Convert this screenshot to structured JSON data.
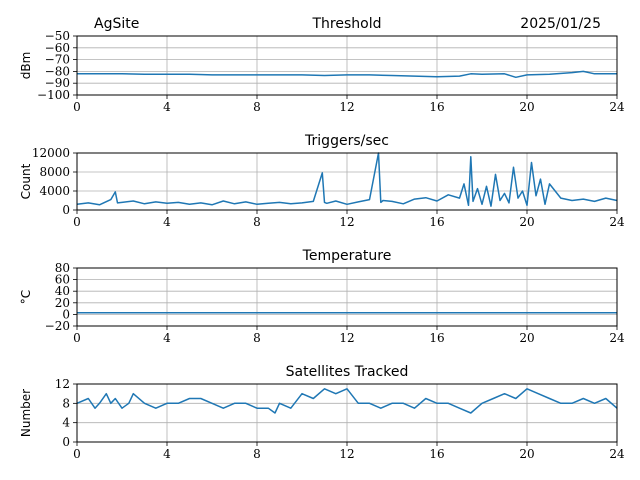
{
  "header": {
    "site": "AgSite",
    "date": "2025/01/25"
  },
  "colors": {
    "series": "#1f77b4",
    "grid": "#b0b0b0",
    "axis": "#000000"
  },
  "chart_data": [
    {
      "type": "line",
      "title": "Threshold",
      "xlabel": "",
      "ylabel": "dBm",
      "xlim": [
        0,
        24
      ],
      "ylim": [
        -100,
        -50
      ],
      "xticks": [
        0,
        4,
        8,
        12,
        16,
        20,
        24
      ],
      "yticks": [
        -100,
        -90,
        -80,
        -70,
        -60,
        -50
      ],
      "ytick_labels": [
        "−100",
        "−90",
        "−80",
        "−70",
        "−60",
        "−50"
      ],
      "grid": true,
      "series": [
        {
          "x": [
            0,
            1,
            2,
            3,
            4,
            5,
            6,
            7,
            8,
            9,
            10,
            11,
            12,
            13,
            14,
            15,
            16,
            17,
            17.5,
            18,
            19,
            19.5,
            20,
            21,
            22,
            22.5,
            23,
            24
          ],
          "y": [
            -82,
            -82,
            -82,
            -82.5,
            -82.5,
            -82.5,
            -83,
            -83,
            -83,
            -83,
            -83,
            -83.5,
            -83,
            -83,
            -83.5,
            -84,
            -84.5,
            -84,
            -82,
            -82.5,
            -82,
            -85,
            -83,
            -82.5,
            -81,
            -80,
            -82,
            -82
          ]
        }
      ]
    },
    {
      "type": "line",
      "title": "Triggers/sec",
      "xlabel": "",
      "ylabel": "Count",
      "xlim": [
        0,
        24
      ],
      "ylim": [
        0,
        12000
      ],
      "xticks": [
        0,
        4,
        8,
        12,
        16,
        20,
        24
      ],
      "yticks": [
        0,
        4000,
        8000,
        12000
      ],
      "ytick_labels": [
        "0",
        "4000",
        "8000",
        "12000"
      ],
      "grid": true,
      "series": [
        {
          "x": [
            0,
            0.5,
            1,
            1.5,
            1.7,
            1.8,
            2,
            2.5,
            3,
            3.5,
            4,
            4.5,
            5,
            5.5,
            6,
            6.5,
            7,
            7.5,
            8,
            8.5,
            9,
            9.5,
            10,
            10.5,
            10.9,
            11,
            11.1,
            11.5,
            12,
            12.5,
            13,
            13.4,
            13.5,
            13.6,
            14,
            14.5,
            15,
            15.5,
            16,
            16.5,
            17,
            17.2,
            17.4,
            17.5,
            17.6,
            17.8,
            18,
            18.2,
            18.4,
            18.6,
            18.8,
            19,
            19.2,
            19.4,
            19.6,
            19.8,
            20,
            20.2,
            20.4,
            20.6,
            20.8,
            21,
            21.5,
            22,
            22.5,
            23,
            23.5,
            24
          ],
          "y": [
            1200,
            1500,
            1100,
            2200,
            3800,
            1500,
            1600,
            1900,
            1300,
            1700,
            1400,
            1600,
            1200,
            1500,
            1100,
            1900,
            1300,
            1700,
            1200,
            1400,
            1600,
            1300,
            1500,
            1800,
            7800,
            1600,
            1400,
            1900,
            1200,
            1700,
            2200,
            12500,
            1600,
            2000,
            1800,
            1300,
            2300,
            2600,
            1900,
            3200,
            2500,
            5500,
            1000,
            11200,
            1800,
            4500,
            1200,
            5000,
            800,
            7500,
            2000,
            3500,
            1500,
            9000,
            2500,
            4000,
            1000,
            10000,
            3000,
            6500,
            1200,
            5500,
            2500,
            2000,
            2300,
            1800,
            2500,
            2000
          ]
        }
      ]
    },
    {
      "type": "line",
      "title": "Temperature",
      "xlabel": "",
      "ylabel": "°C",
      "xlim": [
        0,
        24
      ],
      "ylim": [
        -20,
        80
      ],
      "xticks": [
        0,
        4,
        8,
        12,
        16,
        20,
        24
      ],
      "yticks": [
        -20,
        0,
        20,
        40,
        60,
        80
      ],
      "ytick_labels": [
        "−20",
        "0",
        "20",
        "40",
        "60",
        "80"
      ],
      "grid": true,
      "series": [
        {
          "x": [
            0,
            24
          ],
          "y": [
            3,
            3
          ]
        }
      ]
    },
    {
      "type": "line",
      "title": "Satellites Tracked",
      "xlabel": "",
      "ylabel": "Number",
      "xlim": [
        0,
        24
      ],
      "ylim": [
        0,
        12
      ],
      "xticks": [
        0,
        4,
        8,
        12,
        16,
        20,
        24
      ],
      "yticks": [
        0,
        4,
        8,
        12
      ],
      "ytick_labels": [
        "0",
        "4",
        "8",
        "12"
      ],
      "grid": true,
      "series": [
        {
          "x": [
            0,
            0.5,
            0.8,
            1,
            1.3,
            1.5,
            1.7,
            2,
            2.3,
            2.5,
            3,
            3.5,
            4,
            4.5,
            5,
            5.5,
            6,
            6.5,
            7,
            7.5,
            8,
            8.5,
            8.8,
            9,
            9.5,
            10,
            10.5,
            11,
            11.5,
            12,
            12.5,
            13,
            13.5,
            14,
            14.5,
            15,
            15.5,
            16,
            16.5,
            17,
            17.5,
            18,
            18.5,
            19,
            19.5,
            20,
            20.5,
            21,
            21.5,
            22,
            22.5,
            23,
            23.5,
            24
          ],
          "y": [
            8,
            9,
            7,
            8,
            10,
            8,
            9,
            7,
            8,
            10,
            8,
            7,
            8,
            8,
            9,
            9,
            8,
            7,
            8,
            8,
            7,
            7,
            6,
            8,
            7,
            10,
            9,
            11,
            10,
            11,
            8,
            8,
            7,
            8,
            8,
            7,
            9,
            8,
            8,
            7,
            6,
            8,
            9,
            10,
            9,
            11,
            10,
            9,
            8,
            8,
            9,
            8,
            9,
            7
          ]
        }
      ]
    }
  ]
}
